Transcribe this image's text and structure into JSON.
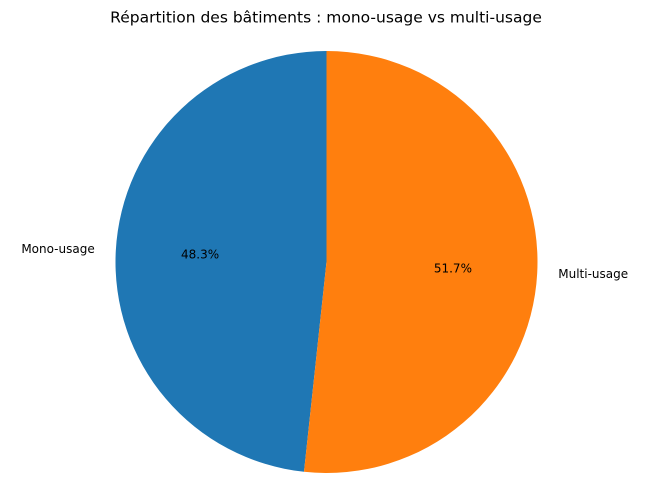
{
  "chart_data": {
    "type": "pie",
    "title": "Répartition des bâtiments : mono-usage vs multi-usage",
    "categories": [
      "Mono-usage",
      "Multi-usage"
    ],
    "values": [
      48.3,
      51.7
    ],
    "value_labels": [
      "48.3%",
      "51.7%"
    ],
    "colors": [
      "#1f77b4",
      "#ff7f0e"
    ]
  }
}
